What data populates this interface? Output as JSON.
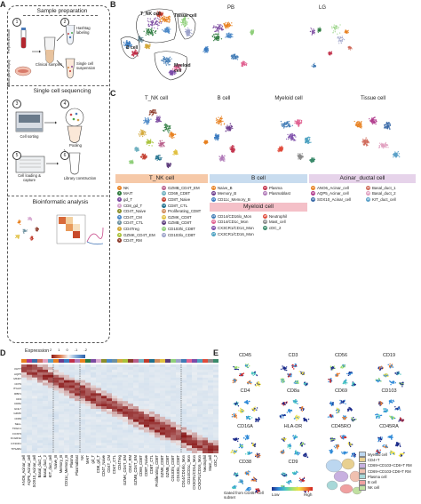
{
  "panels": {
    "A": "A",
    "B": "B",
    "C": "C",
    "D": "D",
    "E": "E"
  },
  "panel_a": {
    "section1": "Sample preparation",
    "blood_label": "Peripheral Blood",
    "biopsy_label": "Labial gland biopsy",
    "clinical_samples": "Clinical samples",
    "hashtag": "Hashtag labeling",
    "single_cell": "Single cell suspension",
    "section2": "Single cell sequencing",
    "cell_sorting": "Cell sorting",
    "pooling": "Pooling",
    "cell_loading": "Cell loading & capture",
    "library": "Library construction",
    "section3": "Bioinformatic analysis",
    "steps": [
      "1",
      "2",
      "3",
      "4",
      "5",
      "6"
    ]
  },
  "panel_b": {
    "titles": [
      "",
      "PB",
      "LG"
    ],
    "clusters": [
      "T_NK cell",
      "Tissue cell",
      "B cell",
      "Myeloid cell"
    ]
  },
  "panel_c": {
    "titles": [
      "T_NK cell",
      "B cell",
      "Myeloid cell",
      "Tissue cell"
    ]
  },
  "legend": {
    "tnk_header": "T_NK cell",
    "b_header": "B cell",
    "myeloid_header": "Myeloid cell",
    "acinar_header": "Acinar_ductal cell",
    "tnk_col1": [
      {
        "n": "0",
        "t": "NK",
        "c": "#e8801f"
      },
      {
        "n": "1",
        "t": "MAIT",
        "c": "#2d7a3e"
      },
      {
        "n": "2",
        "t": "gd_T",
        "c": "#7b4aa0"
      },
      {
        "n": "3",
        "t": "CD8_gd_T",
        "c": "#d6a6cf"
      },
      {
        "n": "4",
        "t": "CD4T_Naive",
        "c": "#8a8f2a"
      },
      {
        "n": "5",
        "t": "CD4T_CM",
        "c": "#4a87c7"
      },
      {
        "n": "6",
        "t": "CD4T_CTL",
        "c": "#6b8f9e"
      },
      {
        "n": "7",
        "t": "CD4Treg",
        "c": "#d3a83a"
      },
      {
        "n": "8",
        "t": "GZMK_CD4T_EM",
        "c": "#a8c23a"
      },
      {
        "n": "9",
        "t": "CD4T_RM",
        "c": "#8c3a2a"
      }
    ],
    "tnk_col2": [
      {
        "n": "10",
        "t": "GZMB_CD4T_EM",
        "c": "#b85f8c"
      },
      {
        "n": "11",
        "t": "CD69_CD8T",
        "c": "#6fb0c0"
      },
      {
        "n": "12",
        "t": "CD8T_Naive",
        "c": "#c23a2a"
      },
      {
        "n": "13",
        "t": "CD8T_CTL",
        "c": "#1f6f8c"
      },
      {
        "n": "14",
        "t": "Proliferating_CD8T",
        "c": "#d08a5a"
      },
      {
        "n": "15",
        "t": "GZMK_CD8T",
        "c": "#e0c040"
      },
      {
        "n": "16",
        "t": "GZMB_CD8T",
        "c": "#5a3a7a"
      },
      {
        "n": "17",
        "t": "CD103hi_CD8T",
        "c": "#8fcf7a"
      },
      {
        "n": "18",
        "t": "CD103lo_CD8T",
        "c": "#9aa0c8"
      }
    ],
    "b_col1": [
      {
        "n": "19",
        "t": "Naive_B",
        "c": "#e8801f"
      },
      {
        "n": "20",
        "t": "Memory_B",
        "c": "#6b3a8c"
      },
      {
        "n": "21",
        "t": "CD11c_Memory_B",
        "c": "#3a7ac0"
      }
    ],
    "b_col2": [
      {
        "n": "22",
        "t": "Plasma",
        "c": "#c2304a"
      },
      {
        "n": "23",
        "t": "Plasmablast",
        "c": "#b07ab8"
      }
    ],
    "my_col1": [
      {
        "n": "24",
        "t": "CD14/CD16lo_Mon",
        "c": "#3f7ab5"
      },
      {
        "n": "25",
        "t": "CD14/CD1c_Mon",
        "c": "#e06090"
      },
      {
        "n": "26",
        "t": "CX3CR1/CD14_Mon",
        "c": "#7a4aa8"
      },
      {
        "n": "27",
        "t": "CX3CR1/CD16_Mon",
        "c": "#4aa0c0"
      }
    ],
    "my_col2": [
      {
        "n": "28",
        "t": "Neutrophil",
        "c": "#e04a3a"
      },
      {
        "n": "29",
        "t": "Mast_cell",
        "c": "#8a8a8a"
      },
      {
        "n": "30",
        "t": "cDC_2",
        "c": "#3a8a6a"
      }
    ],
    "ac_col1": [
      {
        "n": "31",
        "t": "ANO6_Acinar_cell",
        "c": "#e8801f"
      },
      {
        "n": "32",
        "t": "AQP5_Acinar_cell",
        "c": "#b03a8c"
      },
      {
        "n": "33",
        "t": "SOX10_Acinar_cell",
        "c": "#3a6aa8"
      }
    ],
    "ac_col2": [
      {
        "n": "34",
        "t": "Basal_duct_1",
        "c": "#d06a5a"
      },
      {
        "n": "35",
        "t": "Basal_duct_2",
        "c": "#e0a0c0"
      },
      {
        "n": "36",
        "t": "KIT_duct_cell",
        "c": "#5aa0c8"
      }
    ]
  },
  "panel_d": {
    "title": "Expression",
    "scale_ticks": [
      "2",
      "1",
      "0",
      "-1",
      "-2"
    ],
    "row_genes": [
      "KRT7",
      "KRT18",
      "AQP5",
      "ANO6",
      "MKI67",
      "MS4A1",
      "CD79",
      "PLEK",
      "ITGAX",
      "ITGA6",
      "RBP1",
      "RBP4",
      "CD3",
      "CD4",
      "CD8A",
      "KLRB1",
      "GNLY",
      "NKG7",
      "GZMK",
      "PRF1",
      "CD69",
      "CCR7",
      "SELL",
      "TRDC",
      "TRGC1",
      "IL7R",
      "FOXP3",
      "CD14",
      "FCGR3A",
      "CD1C",
      "CX3CR1",
      "CSF3R",
      "TPSAB1",
      "CD86"
    ],
    "col_labels": [
      "ANO6_Acinar_cell",
      "AQP5_Acinar_cell",
      "SOX10_Acinar_cell",
      "Basal_duct_1",
      "Basal_duct_2",
      "KIT_duct_cell",
      "Naive_B",
      "Memory_B",
      "CD11c_Memory_B",
      "Plasma",
      "Plasmablast",
      "NK",
      "MAIT",
      "gd_T",
      "CD8_gd_T",
      "CD4T_Naive",
      "CD4T_CM",
      "CD4T_CTL",
      "CD4Treg",
      "GZMK_CD4T_EM",
      "CD4T_RM",
      "GZMB_CD4T_EM",
      "CD69_CD8T",
      "CD8T_Naive",
      "CD8T_CTL",
      "Proliferating_CD8T",
      "GZMK_CD8T",
      "GZMB_CD8T",
      "CD103hi_CD8T",
      "CD103lo_CD8T",
      "CD14/CD16lo_Mon",
      "CD14/CD1c_Mon",
      "CX3CR1/CD14_Mon",
      "CX3CR1/CD16_Mon",
      "Neutrophil",
      "Mast_cell",
      "cDC_2"
    ]
  },
  "panel_e": {
    "markers": [
      "CD45",
      "CD3",
      "CD56",
      "CD19",
      "CD4",
      "CD8a",
      "CD69",
      "CD103",
      "CD16A",
      "HLA-DR",
      "CD45RO",
      "CD45RA",
      "CD38",
      "CD9"
    ],
    "gated_label": "Gated from CD45+ cell subset",
    "low": "Low",
    "high": "High",
    "legend": [
      {
        "t": "Myeloid cell",
        "c": "#bcd7f0"
      },
      {
        "t": "CD4+T",
        "c": "#e8d090"
      },
      {
        "t": "CD69+CD103+CD8+T RM",
        "c": "#c8b0e0"
      },
      {
        "t": "CD69+CD103-CD8+T RM",
        "c": "#f0c0b0"
      },
      {
        "t": "Plasma cell",
        "c": "#a8d8d8"
      },
      {
        "t": "B cell",
        "c": "#f0a0a0"
      },
      {
        "t": "NK cell",
        "c": "#c0e0a0"
      }
    ]
  },
  "colors": {
    "heat_high": "#8b1a1a",
    "heat_mid": "#f4f4f4",
    "heat_low": "#2b5fa8"
  }
}
